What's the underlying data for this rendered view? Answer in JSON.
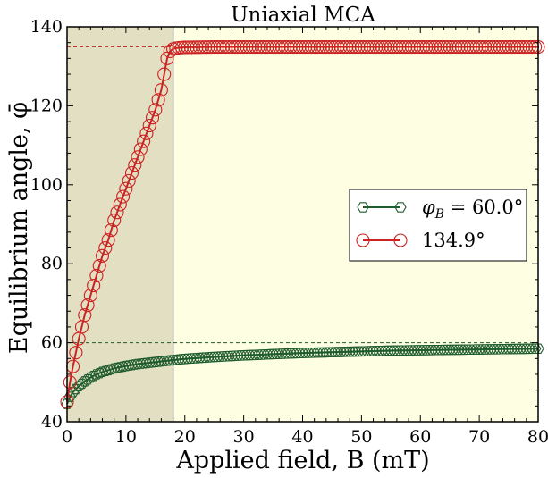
{
  "chart_data": {
    "type": "line",
    "title": "Uniaxial MCA",
    "xlabel": "Applied field, B (mT)",
    "ylabel": "Equilibrium angle, φ̄",
    "xlim": [
      0,
      80
    ],
    "ylim": [
      40,
      140
    ],
    "xticks": [
      0,
      10,
      20,
      30,
      40,
      50,
      60,
      70,
      80
    ],
    "yticks": [
      40,
      60,
      80,
      100,
      120,
      140
    ],
    "grid": false,
    "legend_position": "right",
    "background_regions": [
      {
        "x_from": 0,
        "x_to": 18,
        "color": "#e2dfc2"
      },
      {
        "x_from": 18,
        "x_to": 80,
        "color": "#fefee3"
      }
    ],
    "vertical_line": {
      "x": 18,
      "color": "#333333"
    },
    "reference_lines": [
      {
        "y": 134.9,
        "x_to": 18,
        "color": "#c0392b",
        "style": "dashed"
      },
      {
        "y": 60,
        "x_to": 80,
        "color": "#1f5c2e",
        "style": "dashed"
      }
    ],
    "series": [
      {
        "name": "φB = 60.0°",
        "legend_main": "φ",
        "legend_sub": "B",
        "legend_rest": " = 60.0°",
        "color": "#1f5c2e",
        "marker": "hexagon",
        "x": [
          0,
          0.5,
          1,
          2,
          3,
          4,
          5,
          6,
          8,
          10,
          12,
          15,
          18,
          20,
          25,
          30,
          35,
          40,
          45,
          50,
          55,
          60,
          65,
          70,
          75,
          80
        ],
        "y": [
          44.5,
          46.3,
          47.5,
          49.0,
          50.2,
          51.2,
          52.0,
          52.6,
          53.5,
          54.1,
          54.6,
          55.1,
          55.6,
          55.9,
          56.4,
          56.8,
          57.1,
          57.4,
          57.6,
          57.8,
          58.0,
          58.1,
          58.2,
          58.3,
          58.4,
          58.5
        ]
      },
      {
        "name": "134.9°",
        "legend_main": "134.9°",
        "legend_sub": "",
        "legend_rest": "",
        "color": "#cc2222",
        "marker": "circle",
        "x": [
          0,
          0.5,
          1,
          2,
          3,
          4,
          5,
          6,
          7,
          8,
          9,
          10,
          11,
          12,
          13,
          14,
          15,
          16,
          17,
          17.5,
          18,
          18.5,
          19,
          20,
          25,
          30,
          40,
          50,
          60,
          70,
          80
        ],
        "y": [
          45,
          50,
          54,
          61,
          67,
          72,
          77,
          82,
          86,
          91,
          95,
          99,
          103,
          107,
          111,
          115,
          119,
          124,
          132,
          133.8,
          134.4,
          134.6,
          134.7,
          134.8,
          134.9,
          134.9,
          134.9,
          134.9,
          134.9,
          134.9,
          134.9
        ]
      }
    ]
  }
}
